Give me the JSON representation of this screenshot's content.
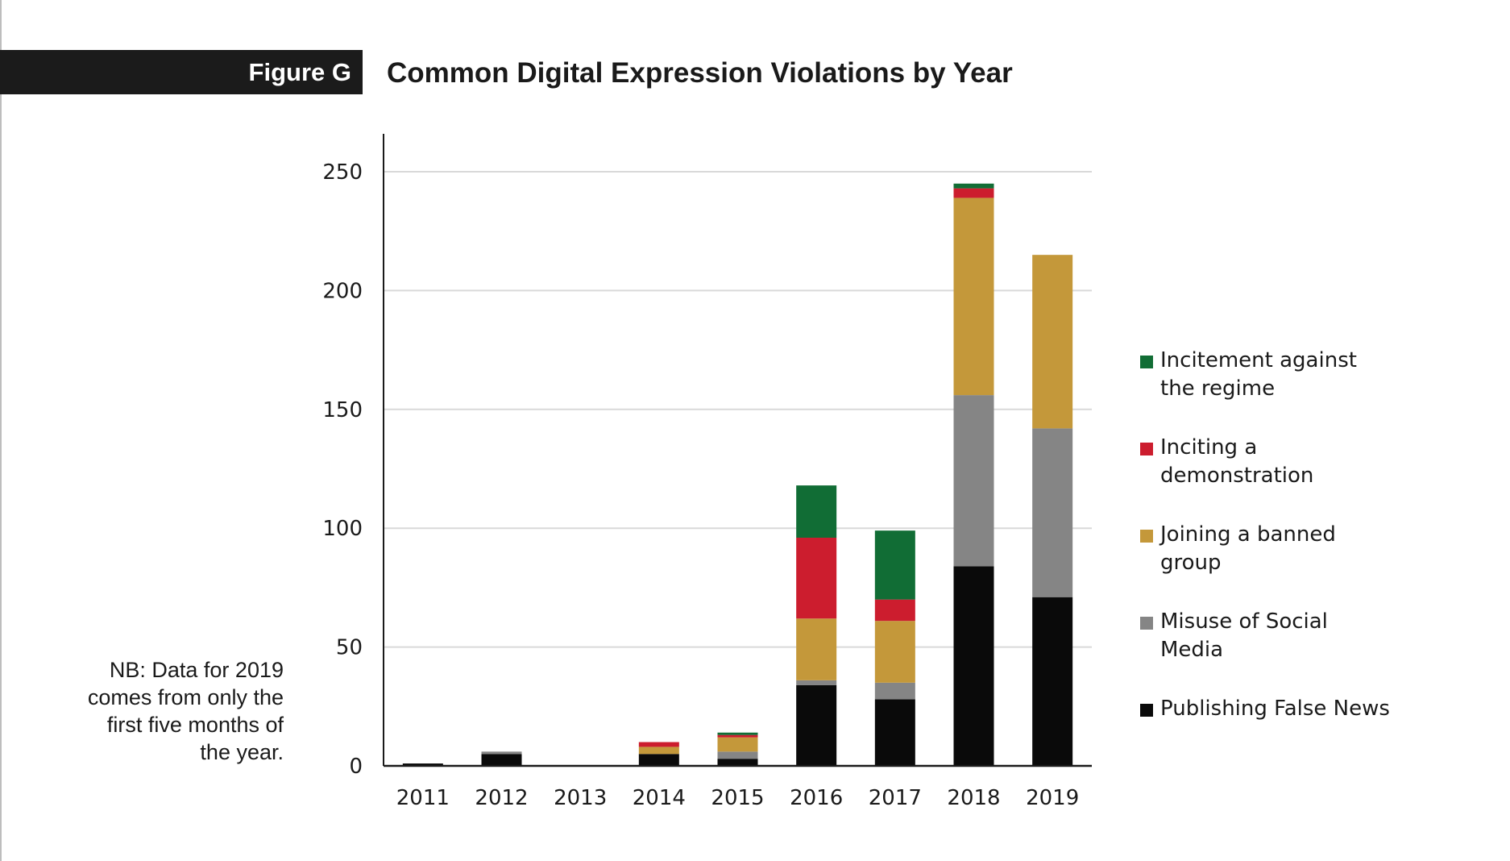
{
  "figure": {
    "label": "Figure G",
    "title": "Common Digital Expression Violations by Year",
    "note": "NB: Data for 2019 comes from only the first five months of the year."
  },
  "colors": {
    "incitement": "#116d35",
    "inciting_demo": "#cc1d2e",
    "banned_group": "#c4983a",
    "social_media": "#858585",
    "false_news": "#0a0a0a",
    "grid": "#d9d9d9",
    "axis": "#1a1a1a"
  },
  "chart_data": {
    "type": "bar",
    "stacked": true,
    "title": "Common Digital Expression Violations by Year",
    "xlabel": "",
    "ylabel": "",
    "ylim": [
      0,
      265
    ],
    "yticks": [
      0,
      50,
      100,
      150,
      200,
      250
    ],
    "grid": true,
    "legend_position": "right",
    "categories": [
      "2011",
      "2012",
      "2013",
      "2014",
      "2015",
      "2016",
      "2017",
      "2018",
      "2019"
    ],
    "series": [
      {
        "name": "Publishing False News",
        "color_key": "false_news",
        "values": [
          1,
          5,
          0,
          5,
          3,
          34,
          28,
          84,
          71
        ]
      },
      {
        "name": "Misuse of Social Media",
        "color_key": "social_media",
        "values": [
          0,
          1,
          0,
          0,
          3,
          2,
          7,
          72,
          71
        ]
      },
      {
        "name": "Joining a banned group",
        "color_key": "banned_group",
        "values": [
          0,
          0,
          0,
          3,
          6,
          26,
          26,
          83,
          73
        ]
      },
      {
        "name": "Inciting a demonstration",
        "color_key": "inciting_demo",
        "values": [
          0,
          0,
          0,
          2,
          1,
          34,
          9,
          4,
          0
        ]
      },
      {
        "name": "Incitement against the regime",
        "color_key": "incitement",
        "values": [
          0,
          0,
          0,
          0,
          1,
          22,
          29,
          2,
          0
        ]
      }
    ]
  },
  "legend": {
    "items": [
      {
        "label": "Incitement against the regime",
        "color_key": "incitement"
      },
      {
        "label": "Inciting a demonstration",
        "color_key": "inciting_demo"
      },
      {
        "label": "Joining a banned group",
        "color_key": "banned_group"
      },
      {
        "label": "Misuse of Social Media",
        "color_key": "social_media"
      },
      {
        "label": "Publishing False News",
        "color_key": "false_news"
      }
    ]
  }
}
